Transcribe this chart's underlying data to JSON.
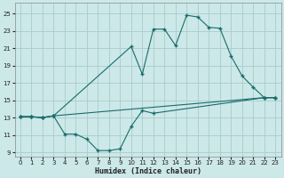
{
  "xlabel": "Humidex (Indice chaleur)",
  "bg_color": "#cce8e8",
  "grid_color": "#aacccc",
  "line_color": "#1a6b6b",
  "x_ticks": [
    0,
    1,
    2,
    3,
    4,
    5,
    6,
    7,
    8,
    9,
    10,
    11,
    12,
    13,
    14,
    15,
    16,
    17,
    18,
    19,
    20,
    21,
    22,
    23
  ],
  "y_ticks": [
    9,
    11,
    13,
    15,
    17,
    19,
    21,
    23,
    25
  ],
  "xlim": [
    -0.5,
    23.5
  ],
  "ylim": [
    8.5,
    26.2
  ],
  "series": {
    "max": {
      "x": [
        0,
        1,
        2,
        3,
        10,
        11,
        12,
        13,
        14,
        15,
        16,
        17,
        18,
        19,
        20,
        21,
        22,
        23
      ],
      "y": [
        13.1,
        13.1,
        13.0,
        13.2,
        21.2,
        18.0,
        23.2,
        23.2,
        21.3,
        24.8,
        24.6,
        23.4,
        23.3,
        20.1,
        17.8,
        16.5,
        15.3,
        15.3
      ]
    },
    "mean": {
      "x": [
        0,
        1,
        2,
        3,
        22,
        23
      ],
      "y": [
        13.1,
        13.1,
        13.0,
        13.2,
        15.3,
        15.3
      ]
    },
    "min": {
      "x": [
        0,
        1,
        2,
        3,
        4,
        5,
        6,
        7,
        8,
        9,
        10,
        11,
        12,
        22,
        23
      ],
      "y": [
        13.1,
        13.1,
        13.0,
        13.2,
        11.1,
        11.1,
        10.5,
        9.2,
        9.2,
        9.4,
        12.0,
        13.8,
        13.5,
        15.3,
        15.3
      ]
    }
  }
}
